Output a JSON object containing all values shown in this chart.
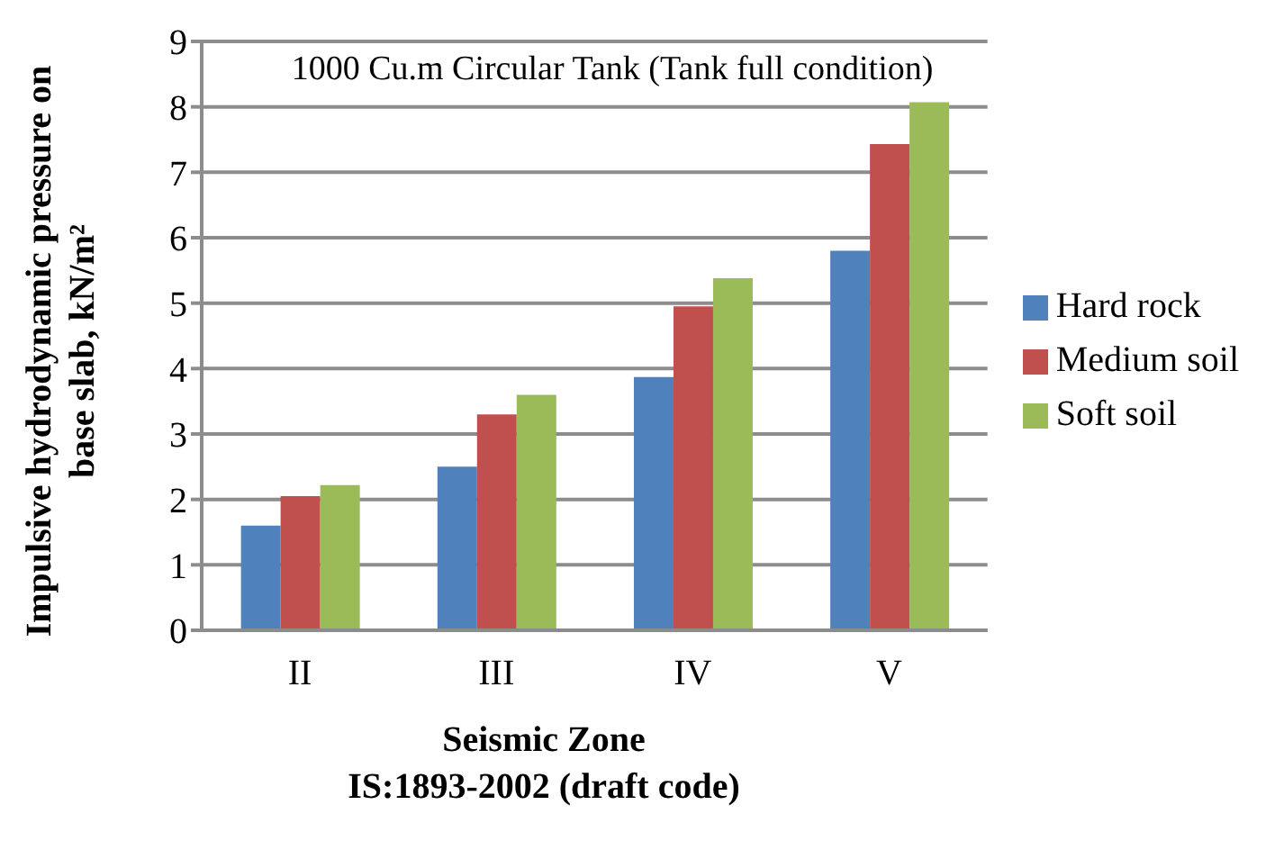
{
  "chart_data": {
    "type": "bar",
    "title": "1000 Cu.m Circular Tank (Tank full condition)",
    "xlabel": "Seismic Zone",
    "ylabel": "Impulsive hydrodynamic pressure on base slab, kN/m²",
    "annotations": [
      "IS:1893-2002 (draft code)"
    ],
    "categories": [
      "II",
      "III",
      "IV",
      "V"
    ],
    "series": [
      {
        "name": "Hard rock",
        "color": "#4f81bd",
        "values": [
          1.6,
          2.5,
          3.87,
          5.8
        ]
      },
      {
        "name": "Medium soil",
        "color": "#c0504d",
        "values": [
          2.05,
          3.3,
          4.95,
          7.43
        ]
      },
      {
        "name": "Soft soil",
        "color": "#9bbb59",
        "values": [
          2.22,
          3.6,
          5.38,
          8.07
        ]
      }
    ],
    "ylim": [
      0,
      9
    ],
    "yticks": [
      0,
      1,
      2,
      3,
      4,
      5,
      6,
      7,
      8,
      9
    ],
    "grid": "y",
    "legend": "right"
  }
}
